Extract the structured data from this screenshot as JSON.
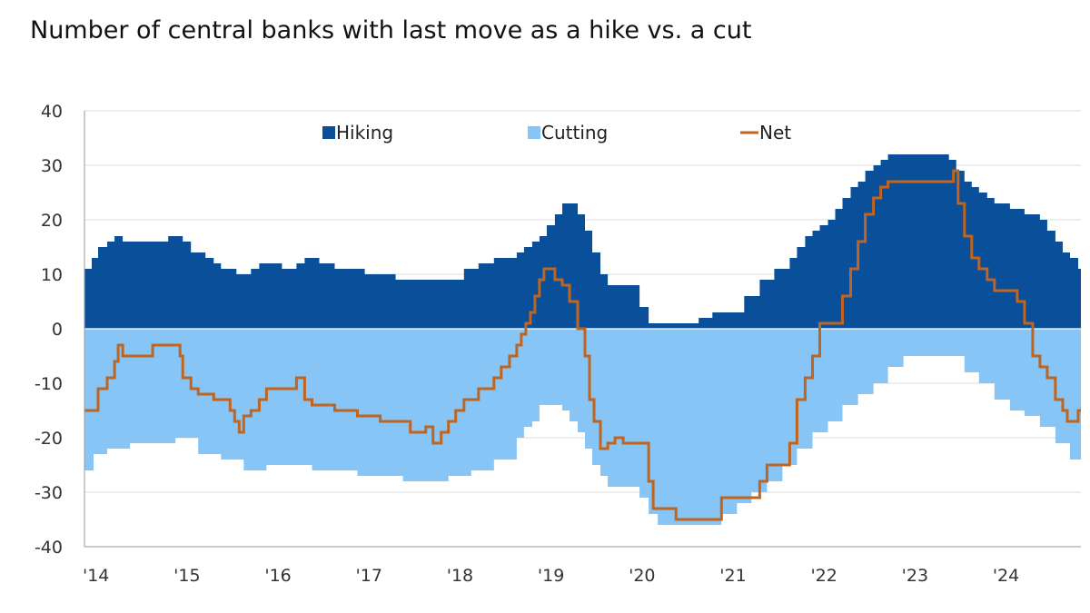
{
  "chart_data": {
    "type": "area",
    "title": "Number of central banks with last move as a hike vs. a cut",
    "xlabel": "",
    "ylabel": "",
    "ylim": [
      -40,
      40
    ],
    "yticks": [
      40,
      30,
      20,
      10,
      0,
      -10,
      -20,
      -30,
      -40
    ],
    "xlim": [
      2014.0,
      2024.95
    ],
    "xticks": [
      {
        "value": 2014,
        "label": "'14"
      },
      {
        "value": 2015,
        "label": "'15"
      },
      {
        "value": 2016,
        "label": "'16"
      },
      {
        "value": 2017,
        "label": "'17"
      },
      {
        "value": 2018,
        "label": "'18"
      },
      {
        "value": 2019,
        "label": "'19"
      },
      {
        "value": 2020,
        "label": "'20"
      },
      {
        "value": 2021,
        "label": "'21"
      },
      {
        "value": 2022,
        "label": "'22"
      },
      {
        "value": 2023,
        "label": "'23"
      },
      {
        "value": 2024,
        "label": "'24"
      }
    ],
    "grid": true,
    "legend_position": "top",
    "colors": {
      "hiking": "#0a4f9a",
      "cutting": "#86c5f5",
      "net": "#c0651f",
      "grid": "#dcdcdc",
      "axis": "#999999"
    },
    "series": [
      {
        "name": "Hiking",
        "style": "area",
        "x": [
          2014.0,
          2014.08,
          2014.15,
          2014.25,
          2014.33,
          2014.42,
          2014.58,
          2014.75,
          2014.92,
          2015.0,
          2015.08,
          2015.17,
          2015.33,
          2015.42,
          2015.5,
          2015.67,
          2015.75,
          2015.83,
          2015.92,
          2016.0,
          2016.17,
          2016.33,
          2016.42,
          2016.58,
          2016.75,
          2016.83,
          2016.92,
          2017.0,
          2017.08,
          2017.25,
          2017.42,
          2017.58,
          2017.75,
          2017.83,
          2017.92,
          2018.0,
          2018.17,
          2018.33,
          2018.5,
          2018.67,
          2018.75,
          2018.83,
          2018.92,
          2019.0,
          2019.08,
          2019.17,
          2019.25,
          2019.33,
          2019.42,
          2019.5,
          2019.58,
          2019.67,
          2019.75,
          2019.83,
          2019.92,
          2020.0,
          2020.1,
          2020.2,
          2020.4,
          2020.6,
          2020.75,
          2020.9,
          2021.0,
          2021.25,
          2021.42,
          2021.58,
          2021.75,
          2021.83,
          2021.92,
          2022.0,
          2022.08,
          2022.17,
          2022.25,
          2022.33,
          2022.42,
          2022.5,
          2022.58,
          2022.67,
          2022.75,
          2022.83,
          2022.92,
          2023.0,
          2023.17,
          2023.33,
          2023.42,
          2023.5,
          2023.58,
          2023.67,
          2023.75,
          2023.83,
          2023.92,
          2024.0,
          2024.17,
          2024.33,
          2024.5,
          2024.58,
          2024.67,
          2024.75,
          2024.83,
          2024.92,
          2024.95
        ],
        "values": [
          11,
          13,
          15,
          16,
          17,
          16,
          16,
          16,
          17,
          17,
          16,
          14,
          13,
          12,
          11,
          10,
          10,
          11,
          12,
          12,
          11,
          12,
          13,
          12,
          11,
          11,
          11,
          11,
          10,
          10,
          9,
          9,
          9,
          9,
          9,
          9,
          11,
          12,
          13,
          13,
          14,
          15,
          16,
          17,
          19,
          21,
          23,
          23,
          21,
          18,
          14,
          10,
          8,
          8,
          8,
          8,
          4,
          1,
          1,
          1,
          2,
          3,
          3,
          6,
          9,
          11,
          13,
          15,
          17,
          18,
          19,
          20,
          22,
          24,
          26,
          27,
          29,
          30,
          31,
          32,
          32,
          32,
          32,
          32,
          32,
          31,
          29,
          27,
          26,
          25,
          24,
          23,
          22,
          21,
          20,
          18,
          16,
          14,
          13,
          11,
          11
        ]
      },
      {
        "name": "Cutting",
        "style": "area",
        "x": [
          2014.0,
          2014.1,
          2014.25,
          2014.5,
          2014.75,
          2015.0,
          2015.08,
          2015.25,
          2015.5,
          2015.75,
          2016.0,
          2016.25,
          2016.5,
          2016.75,
          2017.0,
          2017.25,
          2017.5,
          2017.75,
          2018.0,
          2018.25,
          2018.5,
          2018.75,
          2018.83,
          2018.92,
          2019.0,
          2019.1,
          2019.25,
          2019.33,
          2019.42,
          2019.5,
          2019.58,
          2019.67,
          2019.75,
          2019.83,
          2019.92,
          2020.0,
          2020.1,
          2020.2,
          2020.3,
          2020.5,
          2020.75,
          2021.0,
          2021.17,
          2021.33,
          2021.5,
          2021.67,
          2021.83,
          2022.0,
          2022.17,
          2022.33,
          2022.5,
          2022.67,
          2022.83,
          2023.0,
          2023.25,
          2023.5,
          2023.58,
          2023.67,
          2023.83,
          2024.0,
          2024.17,
          2024.33,
          2024.5,
          2024.67,
          2024.83,
          2024.95
        ],
        "values": [
          -26,
          -23,
          -22,
          -21,
          -21,
          -20,
          -20,
          -23,
          -24,
          -26,
          -25,
          -25,
          -26,
          -26,
          -27,
          -27,
          -28,
          -28,
          -27,
          -26,
          -24,
          -20,
          -18,
          -17,
          -14,
          -14,
          -15,
          -17,
          -19,
          -22,
          -25,
          -27,
          -29,
          -29,
          -29,
          -29,
          -31,
          -34,
          -36,
          -36,
          -36,
          -34,
          -32,
          -30,
          -28,
          -25,
          -22,
          -19,
          -17,
          -14,
          -12,
          -10,
          -7,
          -5,
          -5,
          -5,
          -5,
          -8,
          -10,
          -13,
          -15,
          -16,
          -18,
          -21,
          -24,
          -27
        ]
      },
      {
        "name": "Net",
        "style": "line",
        "x": [
          2014.0,
          2014.05,
          2014.15,
          2014.25,
          2014.33,
          2014.37,
          2014.42,
          2014.67,
          2014.75,
          2015.0,
          2015.05,
          2015.08,
          2015.17,
          2015.25,
          2015.42,
          2015.6,
          2015.65,
          2015.7,
          2015.75,
          2015.83,
          2015.92,
          2016.0,
          2016.25,
          2016.33,
          2016.42,
          2016.5,
          2016.75,
          2016.83,
          2016.92,
          2017.0,
          2017.25,
          2017.5,
          2017.58,
          2017.67,
          2017.75,
          2017.83,
          2017.92,
          2018.0,
          2018.08,
          2018.17,
          2018.33,
          2018.42,
          2018.5,
          2018.58,
          2018.67,
          2018.75,
          2018.8,
          2018.85,
          2018.9,
          2018.95,
          2019.0,
          2019.05,
          2019.17,
          2019.25,
          2019.33,
          2019.42,
          2019.5,
          2019.55,
          2019.6,
          2019.67,
          2019.75,
          2019.83,
          2019.92,
          2020.0,
          2020.08,
          2020.17,
          2020.2,
          2020.25,
          2020.5,
          2020.67,
          2020.75,
          2020.83,
          2021.0,
          2021.25,
          2021.42,
          2021.5,
          2021.58,
          2021.67,
          2021.75,
          2021.83,
          2021.92,
          2022.0,
          2022.08,
          2022.17,
          2022.25,
          2022.33,
          2022.42,
          2022.5,
          2022.58,
          2022.67,
          2022.75,
          2022.83,
          2023.0,
          2023.25,
          2023.4,
          2023.5,
          2023.55,
          2023.6,
          2023.67,
          2023.75,
          2023.83,
          2023.92,
          2024.0,
          2024.08,
          2024.17,
          2024.25,
          2024.33,
          2024.42,
          2024.5,
          2024.58,
          2024.67,
          2024.75,
          2024.8,
          2024.83,
          2024.92,
          2024.95
        ],
        "values": [
          -15,
          -15,
          -11,
          -9,
          -6,
          -3,
          -5,
          -5,
          -3,
          -3,
          -5,
          -9,
          -11,
          -12,
          -13,
          -15,
          -17,
          -19,
          -16,
          -15,
          -13,
          -11,
          -11,
          -9,
          -13,
          -14,
          -15,
          -15,
          -15,
          -16,
          -17,
          -17,
          -19,
          -19,
          -18,
          -21,
          -19,
          -17,
          -15,
          -13,
          -11,
          -11,
          -9,
          -7,
          -5,
          -3,
          -1,
          1,
          3,
          6,
          9,
          11,
          9,
          8,
          5,
          0,
          -5,
          -13,
          -17,
          -22,
          -21,
          -20,
          -21,
          -21,
          -21,
          -21,
          -28,
          -33,
          -35,
          -35,
          -35,
          -35,
          -31,
          -31,
          -28,
          -25,
          -25,
          -25,
          -21,
          -13,
          -9,
          -5,
          1,
          1,
          1,
          6,
          11,
          16,
          21,
          24,
          26,
          27,
          27,
          27,
          27,
          27,
          29,
          23,
          17,
          13,
          11,
          9,
          7,
          7,
          7,
          5,
          1,
          -5,
          -7,
          -9,
          -13,
          -15,
          -17,
          -17,
          -15,
          -15
        ]
      }
    ]
  }
}
